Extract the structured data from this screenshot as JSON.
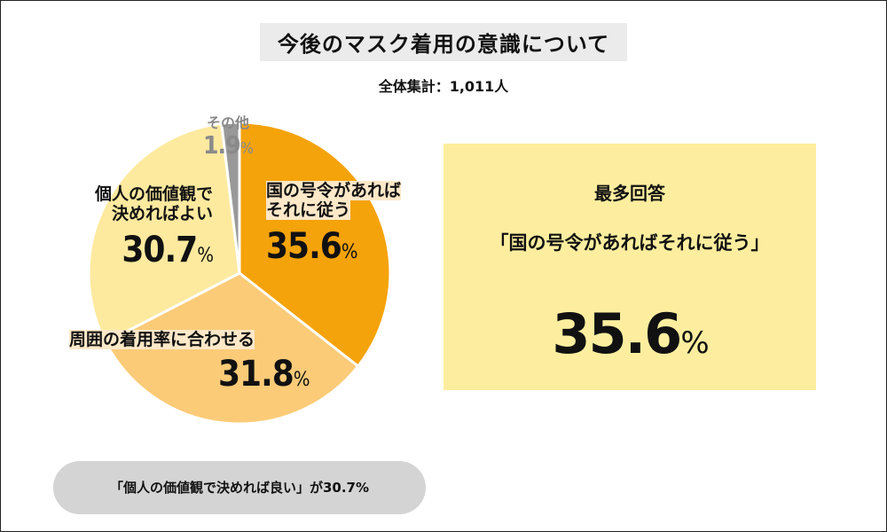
{
  "title": "今後のマスク着用の意識について",
  "subtitle": "全体集計：1,011人",
  "chart_data": {
    "type": "pie",
    "slices": [
      {
        "label_lines": [
          "国の号令があれば",
          "それに従う"
        ],
        "value": 35.6,
        "display": "35.6",
        "color": "#f5a30a"
      },
      {
        "label_lines": [
          "周囲の着用率に合わせる"
        ],
        "value": 31.8,
        "display": "31.8",
        "color": "#fbcb78"
      },
      {
        "label_lines": [
          "個人の価値観で",
          "決めればよい"
        ],
        "value": 30.7,
        "display": "30.7",
        "color": "#fdea9f"
      },
      {
        "label_lines": [
          "その他"
        ],
        "value": 1.9,
        "display": "1.9",
        "color": "#999999"
      }
    ],
    "unit": "%",
    "start_direction": "top",
    "direction": "clockwise"
  },
  "highlight": {
    "heading": "最多回答",
    "answer": "「国の号令があればそれに従う」",
    "value": "35.6",
    "unit": "%"
  },
  "note": "「個人の価値観で決めれば良い」が30.7%"
}
